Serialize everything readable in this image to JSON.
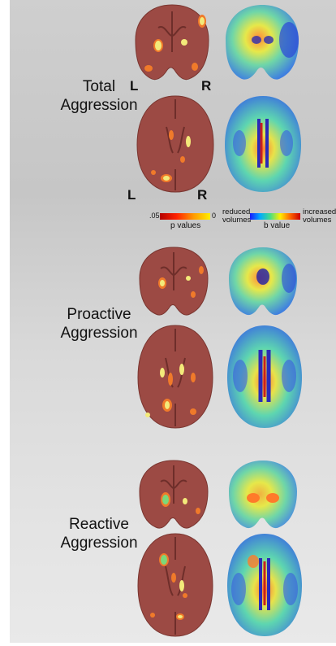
{
  "rows": [
    {
      "title_line1": "Total",
      "title_line2": "Aggression"
    },
    {
      "title_line1": "Proactive",
      "title_line2": "Aggression"
    },
    {
      "title_line1": "Reactive",
      "title_line2": "Aggression"
    }
  ],
  "orientation": {
    "left": "L",
    "right": "R"
  },
  "p_legend": {
    "min": ".05",
    "max": "0",
    "title": "p values",
    "colors": [
      "#b30000",
      "#ff2200",
      "#ff9900",
      "#ffee00"
    ]
  },
  "b_legend": {
    "low_line1": "reduced",
    "low_line2": "volumes",
    "title": "b value",
    "high_line1": "increased",
    "high_line2": "volumes",
    "colors": [
      "#1a1aff",
      "#00aaff",
      "#44dd88",
      "#ffee00",
      "#ff6600",
      "#cc0000"
    ]
  },
  "colors": {
    "brain_tissue": "#9c4a44",
    "brain_dark": "#6e2e2a",
    "blob_yellow": "#f3ea7a",
    "blob_orange": "#f07a2a"
  }
}
